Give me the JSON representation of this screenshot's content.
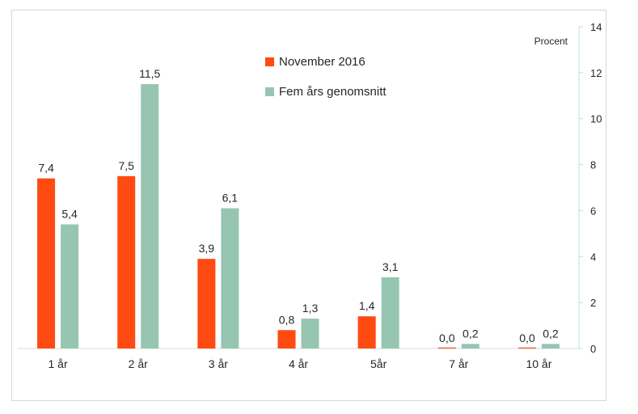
{
  "chart_data": {
    "type": "bar",
    "unit_label": "Procent",
    "categories": [
      "1 år",
      "2 år",
      "3 år",
      "4 år",
      "5år",
      "7 år",
      "10 år"
    ],
    "series": [
      {
        "name": "November 2016",
        "color": "#ff4a12",
        "values": [
          7.4,
          7.5,
          3.9,
          0.8,
          1.4,
          0.0,
          0.0
        ],
        "labels": [
          "7,4",
          "7,5",
          "3,9",
          "0,8",
          "1,4",
          "0,0",
          "0,0"
        ]
      },
      {
        "name": "Fem års genomsnitt",
        "color": "#96c6b2",
        "values": [
          5.4,
          11.5,
          6.1,
          1.3,
          3.1,
          0.2,
          0.2
        ],
        "labels": [
          "5,4",
          "11,5",
          "6,1",
          "1,3",
          "3,1",
          "0,2",
          "0,2"
        ]
      }
    ],
    "ylim": [
      0,
      14
    ],
    "yticks": [
      "0",
      "2",
      "4",
      "6",
      "8",
      "10",
      "12",
      "14"
    ],
    "y_axis_side": "right",
    "legend_position": "top-center",
    "grid": false
  }
}
